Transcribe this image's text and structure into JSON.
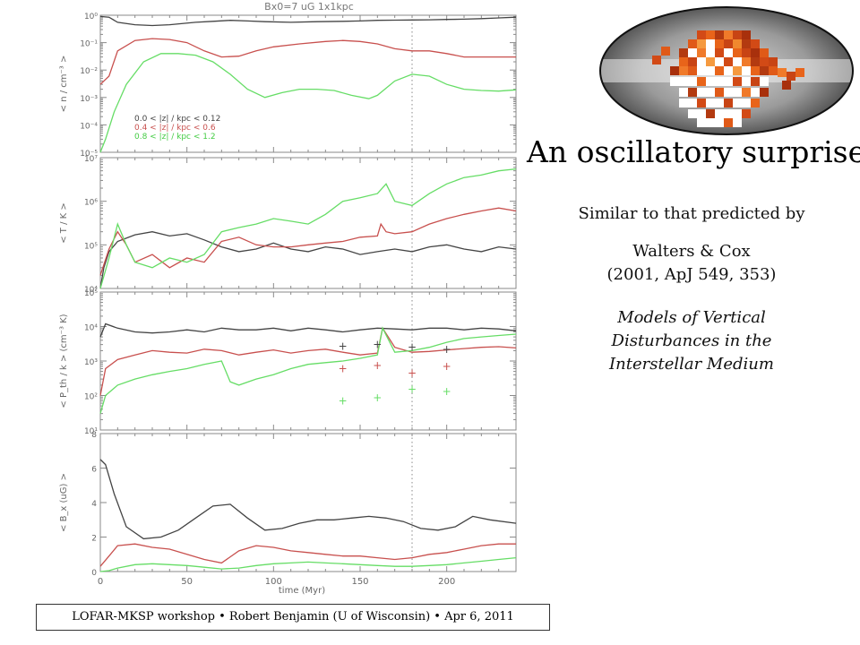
{
  "slide": {
    "headline": "An oscillatory surprise!",
    "similar": "Similar to that predicted by",
    "authors_line1": "Walters & Cox",
    "authors_line2": "(2001, ApJ 549, 353)",
    "paper_title_line1": "Models of Vertical",
    "paper_title_line2": "Disturbances in the",
    "paper_title_line3": "Interstellar Medium",
    "footer": "LOFAR-MKSP workshop • Robert Benjamin (U of Wisconsin) • Apr 6, 2011"
  },
  "colors": {
    "black": "#444444",
    "red": "#c8504e",
    "green": "#66dd66",
    "axis": "#8a8a8a"
  },
  "chart_data": {
    "type": "line",
    "title": "Bx0=7 uG 1x1kpc",
    "xlabel": "time (Myr)",
    "xlim": [
      0,
      240
    ],
    "xticks": [
      0,
      50,
      100,
      150,
      200
    ],
    "xtick_labels": [
      "0",
      "50",
      "100",
      "150",
      "200"
    ],
    "vline": 180,
    "legend": [
      "0.0 < |z| / kpc < 0.12",
      "0.4 < |z| / kpc < 0.6",
      "0.8 < |z| / kpc < 1.2"
    ],
    "panels": [
      {
        "ylabel": "< n / cm⁻³ >",
        "yscale": "log",
        "ylim_exp": [
          -5,
          0
        ],
        "tick_labels": [
          "10⁻⁵",
          "10⁻⁴",
          "10⁻³",
          "10⁻²",
          "10⁻¹",
          "10⁰"
        ],
        "series": [
          {
            "x": [
              0,
              5,
              10,
              20,
              30,
              40,
              55,
              65,
              75,
              85,
              95,
              110,
              125,
              140,
              150,
              160,
              170,
              180,
              190,
              200,
              210,
              220,
              230,
              240
            ],
            "y": [
              0.9,
              0.85,
              0.55,
              0.45,
              0.42,
              0.45,
              0.55,
              0.6,
              0.65,
              0.62,
              0.58,
              0.55,
              0.58,
              0.6,
              0.62,
              0.65,
              0.66,
              0.67,
              0.68,
              0.7,
              0.72,
              0.75,
              0.8,
              0.85
            ]
          },
          {
            "x": [
              0,
              5,
              10,
              20,
              30,
              40,
              50,
              60,
              70,
              80,
              90,
              100,
              115,
              130,
              140,
              150,
              160,
              170,
              180,
              190,
              200,
              210,
              220,
              230,
              240
            ],
            "y": [
              0.003,
              0.006,
              0.05,
              0.12,
              0.14,
              0.13,
              0.1,
              0.05,
              0.03,
              0.032,
              0.05,
              0.07,
              0.09,
              0.11,
              0.12,
              0.11,
              0.09,
              0.06,
              0.05,
              0.05,
              0.04,
              0.03,
              0.03,
              0.03,
              0.03
            ]
          },
          {
            "x": [
              0,
              3,
              8,
              15,
              25,
              35,
              45,
              55,
              65,
              75,
              85,
              95,
              105,
              115,
              125,
              135,
              145,
              155,
              160,
              170,
              180,
              190,
              200,
              210,
              220,
              230,
              240
            ],
            "y": [
              1e-05,
              3e-05,
              0.0003,
              0.003,
              0.02,
              0.04,
              0.04,
              0.035,
              0.02,
              0.007,
              0.002,
              0.001,
              0.0015,
              0.002,
              0.002,
              0.0018,
              0.0012,
              0.0009,
              0.0012,
              0.004,
              0.007,
              0.006,
              0.003,
              0.002,
              0.0018,
              0.0017,
              0.0019
            ]
          }
        ]
      },
      {
        "ylabel": "< T / K >",
        "yscale": "log",
        "ylim_exp": [
          4,
          7
        ],
        "tick_labels": [
          "10⁴",
          "10⁵",
          "10⁶",
          "10⁷"
        ],
        "series": [
          {
            "x": [
              0,
              2,
              5,
              10,
              20,
              30,
              40,
              50,
              60,
              70,
              80,
              90,
              100,
              110,
              120,
              130,
              140,
              150,
              160,
              170,
              180,
              190,
              200,
              210,
              220,
              230,
              240
            ],
            "y": [
              10000,
              30000,
              70000,
              120000,
              170000,
              200000,
              160000,
              180000,
              130000,
              90000,
              70000,
              80000,
              110000,
              80000,
              70000,
              90000,
              80000,
              60000,
              70000,
              80000,
              70000,
              90000,
              100000,
              80000,
              70000,
              90000,
              80000
            ]
          },
          {
            "x": [
              0,
              5,
              10,
              15,
              20,
              30,
              40,
              50,
              60,
              70,
              80,
              90,
              100,
              110,
              120,
              130,
              140,
              150,
              160,
              162,
              165,
              170,
              180,
              190,
              200,
              210,
              220,
              230,
              240
            ],
            "y": [
              20000,
              80000,
              200000,
              100000,
              40000,
              60000,
              30000,
              50000,
              40000,
              120000,
              150000,
              100000,
              90000,
              90000,
              100000,
              110000,
              120000,
              150000,
              160000,
              300000,
              200000,
              180000,
              200000,
              300000,
              400000,
              500000,
              600000,
              700000,
              600000
            ]
          },
          {
            "x": [
              0,
              5,
              10,
              15,
              20,
              30,
              40,
              50,
              60,
              70,
              80,
              90,
              100,
              110,
              120,
              130,
              140,
              150,
              160,
              165,
              170,
              180,
              190,
              200,
              210,
              220,
              230,
              240
            ],
            "y": [
              10000,
              50000,
              300000,
              100000,
              40000,
              30000,
              50000,
              40000,
              60000,
              200000,
              250000,
              300000,
              400000,
              350000,
              300000,
              500000,
              1000000,
              1200000,
              1500000,
              2500000,
              1000000,
              800000,
              1500000,
              2500000,
              3500000,
              4000000,
              5000000,
              5500000
            ]
          }
        ]
      },
      {
        "ylabel": "< P_th / k > (cm⁻³ K)",
        "yscale": "log",
        "ylim_exp": [
          1,
          5
        ],
        "tick_labels": [
          "10¹",
          "10²",
          "10³",
          "10⁴",
          "10⁵"
        ],
        "series": [
          {
            "x": [
              0,
              3,
              10,
              20,
              30,
              40,
              50,
              60,
              70,
              80,
              90,
              100,
              110,
              120,
              130,
              140,
              150,
              160,
              170,
              180,
              190,
              200,
              210,
              220,
              230,
              240
            ],
            "y": [
              5000,
              12000,
              9000,
              7000,
              6500,
              7000,
              8000,
              7000,
              9000,
              8000,
              8000,
              9000,
              7500,
              9000,
              8000,
              7000,
              8000,
              9000,
              8500,
              8000,
              9000,
              9000,
              8000,
              9000,
              8500,
              7500
            ]
          },
          {
            "x": [
              0,
              3,
              10,
              20,
              30,
              40,
              50,
              60,
              70,
              80,
              90,
              100,
              110,
              120,
              130,
              140,
              150,
              160,
              163,
              170,
              180,
              190,
              200,
              210,
              220,
              230,
              240
            ],
            "y": [
              100,
              600,
              1100,
              1500,
              2000,
              1800,
              1700,
              2200,
              2000,
              1500,
              1800,
              2100,
              1700,
              2000,
              2200,
              1800,
              1500,
              1700,
              9000,
              2500,
              1800,
              1900,
              2100,
              2300,
              2500,
              2600,
              2400
            ]
          },
          {
            "x": [
              0,
              3,
              10,
              20,
              30,
              40,
              50,
              60,
              70,
              75,
              80,
              90,
              100,
              110,
              120,
              130,
              140,
              150,
              160,
              163,
              170,
              180,
              190,
              200,
              210,
              220,
              230,
              240
            ],
            "y": [
              30,
              100,
              200,
              300,
              400,
              500,
              600,
              800,
              1000,
              250,
              200,
              300,
              400,
              600,
              800,
              900,
              1000,
              1200,
              1500,
              9000,
              1800,
              2000,
              2500,
              3500,
              4500,
              5000,
              5500,
              6000
            ]
          }
        ],
        "markers": [
          {
            "series": 0,
            "x": [
              140,
              160,
              180,
              200
            ],
            "y": [
              2700,
              3000,
              2500,
              2200
            ]
          },
          {
            "series": 1,
            "x": [
              140,
              160,
              180,
              200
            ],
            "y": [
              600,
              750,
              450,
              700
            ]
          },
          {
            "series": 2,
            "x": [
              140,
              160,
              180,
              200
            ],
            "y": [
              70,
              85,
              150,
              130
            ]
          }
        ]
      },
      {
        "ylabel": "< B_x (uG) >",
        "yscale": "linear",
        "ylim": [
          0,
          8
        ],
        "ticks": [
          0,
          2,
          4,
          6,
          8
        ],
        "tick_labels": [
          "0",
          "2",
          "4",
          "6",
          "8"
        ],
        "series": [
          {
            "x": [
              0,
              3,
              8,
              15,
              25,
              35,
              45,
              55,
              65,
              75,
              85,
              95,
              105,
              115,
              125,
              135,
              145,
              155,
              165,
              175,
              185,
              195,
              205,
              215,
              225,
              240
            ],
            "y": [
              6.5,
              6.2,
              4.5,
              2.6,
              1.9,
              2.0,
              2.4,
              3.1,
              3.8,
              3.9,
              3.1,
              2.4,
              2.5,
              2.8,
              3.0,
              3.0,
              3.1,
              3.2,
              3.1,
              2.9,
              2.5,
              2.4,
              2.6,
              3.2,
              3.0,
              2.8
            ]
          },
          {
            "x": [
              0,
              5,
              10,
              20,
              30,
              40,
              50,
              60,
              70,
              80,
              90,
              100,
              110,
              120,
              130,
              140,
              150,
              160,
              170,
              180,
              190,
              200,
              210,
              220,
              230,
              240
            ],
            "y": [
              0.3,
              0.9,
              1.5,
              1.6,
              1.4,
              1.3,
              1.0,
              0.7,
              0.5,
              1.2,
              1.5,
              1.4,
              1.2,
              1.1,
              1.0,
              0.9,
              0.9,
              0.8,
              0.7,
              0.8,
              1.0,
              1.1,
              1.3,
              1.5,
              1.6,
              1.6
            ]
          },
          {
            "x": [
              0,
              5,
              10,
              20,
              30,
              40,
              50,
              60,
              70,
              80,
              90,
              100,
              110,
              120,
              130,
              140,
              150,
              160,
              170,
              180,
              190,
              200,
              210,
              220,
              230,
              240
            ],
            "y": [
              0.0,
              0.05,
              0.2,
              0.4,
              0.45,
              0.4,
              0.35,
              0.25,
              0.15,
              0.2,
              0.35,
              0.45,
              0.5,
              0.55,
              0.5,
              0.45,
              0.4,
              0.35,
              0.3,
              0.3,
              0.35,
              0.4,
              0.5,
              0.6,
              0.7,
              0.8
            ]
          }
        ]
      }
    ]
  }
}
